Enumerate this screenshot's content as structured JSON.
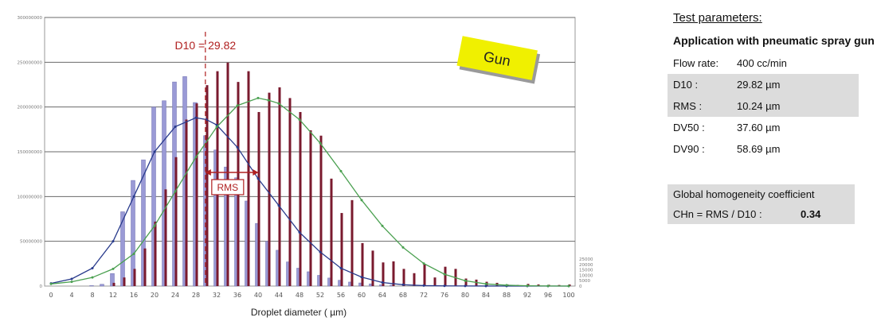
{
  "chart_data": {
    "type": "bar",
    "xlabel": "Droplet diameter ( µm)",
    "x_ticks": [
      "0",
      "4",
      "8",
      "12",
      "16",
      "20",
      "24",
      "28",
      "32",
      "36",
      "40",
      "44",
      "48",
      "52",
      "56",
      "60",
      "64",
      "68",
      "72",
      "76",
      "80",
      "84",
      "88",
      "92",
      "96",
      "100"
    ],
    "xlim": [
      0,
      100
    ],
    "ylim_left": [
      0,
      300000000
    ],
    "ylim_right": [
      0,
      250000
    ],
    "y_ticks_left": [
      "0",
      "50000000",
      "100000000",
      "150000000",
      "200000000",
      "250000000",
      "300000000"
    ],
    "y_ticks_right": [
      "0",
      "5000",
      "10000",
      "15000",
      "20000",
      "25000"
    ],
    "series": [
      {
        "axis": "left",
        "type": "bar",
        "color": "#9a9ad6",
        "x": [
          8,
          10,
          12,
          14,
          16,
          18,
          20,
          22,
          24,
          26,
          28,
          30,
          32,
          34,
          36,
          38,
          40,
          42,
          44,
          46,
          48,
          50,
          52,
          54,
          56,
          58,
          60,
          62,
          64,
          66
        ],
        "values": [
          500000,
          2000000,
          14000000,
          83000000,
          118000000,
          141000000,
          200000000,
          207000000,
          228000000,
          234000000,
          205000000,
          168000000,
          152000000,
          133000000,
          121000000,
          95000000,
          70000000,
          50000000,
          40000000,
          27000000,
          20000000,
          16000000,
          12000000,
          9000000,
          6500000,
          4500000,
          3500000,
          2500000,
          1500000,
          1000000
        ]
      },
      {
        "axis": "right",
        "type": "bar",
        "color": "#7a1a2e",
        "x": [
          12,
          14,
          16,
          18,
          20,
          22,
          24,
          26,
          28,
          30,
          32,
          34,
          36,
          38,
          40,
          42,
          44,
          46,
          48,
          50,
          52,
          54,
          56,
          58,
          60,
          62,
          64,
          66,
          68,
          70,
          72,
          74,
          76,
          78,
          80,
          82,
          84,
          86,
          88,
          90,
          92,
          94,
          96,
          98,
          100
        ],
        "values": [
          3000,
          8000,
          16000,
          35000,
          60000,
          90000,
          120000,
          155000,
          170000,
          187000,
          200000,
          208000,
          190000,
          200000,
          162000,
          180000,
          185000,
          175000,
          162000,
          145000,
          140000,
          100000,
          68000,
          80000,
          40000,
          33000,
          22000,
          23000,
          16000,
          12000,
          20000,
          8000,
          18000,
          16000,
          7000,
          6000,
          4000,
          3000,
          1500,
          1000,
          2000,
          1500,
          1200,
          1000,
          1500
        ]
      },
      {
        "axis": "left",
        "type": "line",
        "color": "#283a8c",
        "x": [
          0,
          4,
          8,
          12,
          16,
          20,
          24,
          28,
          30,
          32,
          36,
          40,
          44,
          48,
          52,
          56,
          60,
          64,
          68,
          72,
          76,
          80,
          84,
          88,
          92,
          96,
          100
        ],
        "values": [
          3000000,
          8000000,
          20000000,
          50000000,
          100000000,
          150000000,
          178000000,
          188000000,
          186000000,
          180000000,
          155000000,
          120000000,
          90000000,
          60000000,
          38000000,
          20000000,
          10000000,
          4000000,
          1500000,
          500000,
          200000,
          100000,
          50000,
          0,
          0,
          0,
          0
        ]
      },
      {
        "axis": "right",
        "type": "line",
        "color": "#4aa050",
        "x": [
          0,
          4,
          8,
          12,
          16,
          20,
          24,
          28,
          32,
          36,
          40,
          42,
          44,
          48,
          52,
          56,
          60,
          64,
          68,
          72,
          76,
          80,
          84,
          88,
          92,
          96,
          100
        ],
        "values": [
          2000,
          4000,
          8000,
          16000,
          30000,
          56000,
          88000,
          120000,
          148000,
          168000,
          175000,
          173000,
          170000,
          155000,
          133000,
          107000,
          80000,
          56000,
          36000,
          21000,
          11000,
          5000,
          2000,
          800,
          300,
          100,
          0
        ]
      }
    ],
    "annotations": {
      "d10_label": "D10 = 29.82",
      "d10_x": 29.82,
      "rms_label": "RMS",
      "rms_from": 29.82,
      "rms_to": 40.06,
      "gun_label": "Gun"
    }
  },
  "params": {
    "title": "Test parameters:",
    "subtitle": "Application with pneumatic spray gun",
    "rows": [
      {
        "label": "Flow rate:",
        "value": "400 cc/min"
      },
      {
        "label": "D10 :",
        "value": "29.82 µm"
      },
      {
        "label": "RMS :",
        "value": "10.24 µm"
      },
      {
        "label": "DV50 :",
        "value": "37.60 µm"
      },
      {
        "label": "DV90 :",
        "value": "58.69 µm"
      }
    ],
    "global_title": "Global homogeneity coefficient",
    "global_label": "CHn = RMS / D10 :",
    "global_value": "0.34"
  },
  "colors": {
    "bar_blue": "#9a9ad6",
    "bar_red": "#7a1a2e",
    "curve_blue": "#283a8c",
    "curve_green": "#4aa050",
    "annotation_red": "#b02020",
    "gun_yellow": "#f0f000",
    "table_shade": "#dcdcdc"
  }
}
